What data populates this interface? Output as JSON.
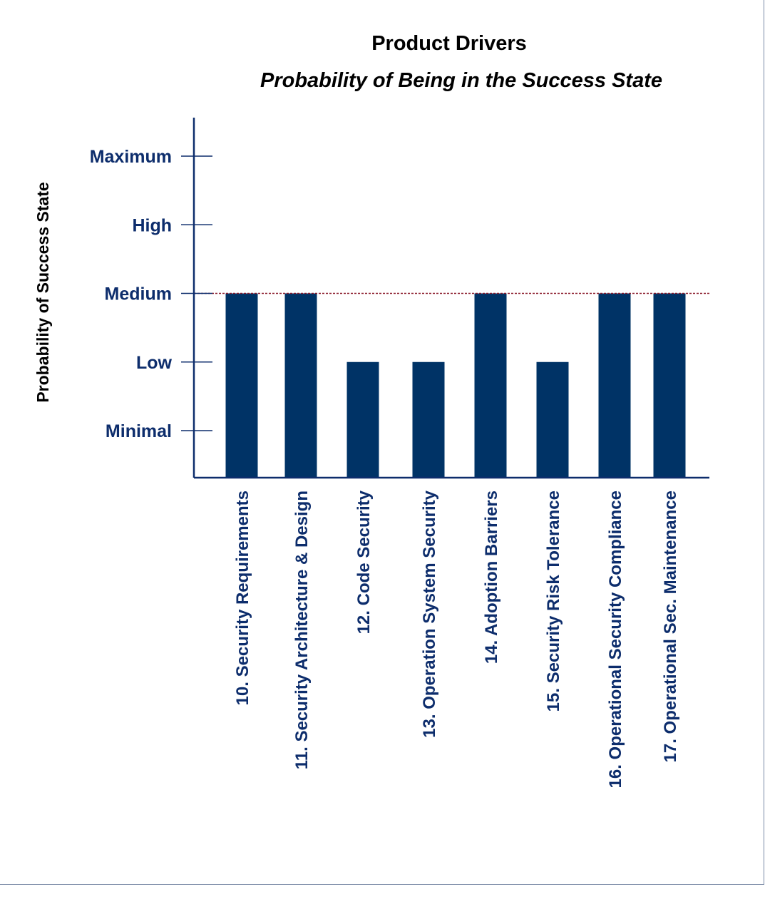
{
  "colors": {
    "bar": "#003366",
    "axis": "#0d2d6c",
    "reference_line": "#8b1a2b",
    "text_dark": "#000000"
  },
  "chart_data": {
    "type": "bar",
    "title": "Product Drivers",
    "subtitle": "Probability of Being in the Success State",
    "xlabel": "",
    "ylabel": "Probability of Success State",
    "y_levels": [
      "Minimal",
      "Low",
      "Medium",
      "High",
      "Maximum"
    ],
    "ylim": [
      0.3,
      5.3
    ],
    "reference_line": {
      "value": 3,
      "style": "dashed"
    },
    "categories": [
      "10. Security Requirements",
      "11. Security Architecture  & Design",
      "12. Code Security",
      "13. Operation System  Security",
      "14. Adoption Barriers",
      "15. Security Risk Tolerance",
      "16. Operational Security Compliance",
      "17. Operational Sec. Maintenance"
    ],
    "values": [
      3,
      3,
      2,
      2,
      3,
      2,
      3,
      3
    ],
    "value_labels": [
      "Medium",
      "Medium",
      "Low",
      "Low",
      "Medium",
      "Low",
      "Medium",
      "Medium"
    ],
    "grid": false,
    "legend": "none"
  }
}
